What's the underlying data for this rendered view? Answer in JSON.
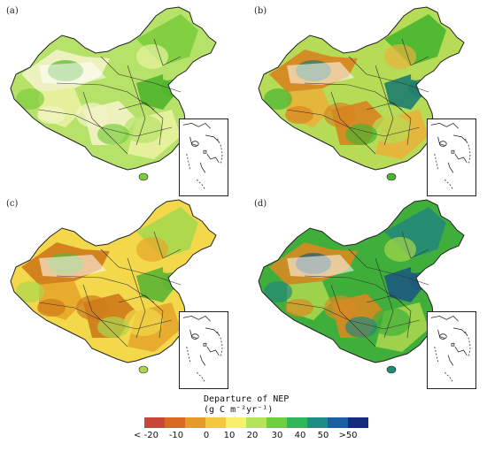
{
  "panels": [
    {
      "label": "(a)",
      "palette": [
        "#f3f3c8",
        "#e9f3a0",
        "#b7e26a",
        "#7ccd3e",
        "#4fb52e"
      ]
    },
    {
      "label": "(b)",
      "palette": [
        "#d9831f",
        "#e9b23a",
        "#b6dc57",
        "#47b530",
        "#1d7c6e"
      ]
    },
    {
      "label": "(c)",
      "palette": [
        "#cf7a1a",
        "#e5a72a",
        "#f2d84a",
        "#a9d84d",
        "#5bb534"
      ]
    },
    {
      "label": "(d)",
      "palette": [
        "#d88a22",
        "#a7d64c",
        "#3fae3a",
        "#23897a",
        "#1d5a7e"
      ]
    }
  ],
  "legend": {
    "title_line1": "Departure of NEP",
    "title_line2": "(g C m⁻²yr⁻¹)",
    "colors": [
      "#c8463a",
      "#d86a24",
      "#e59a2a",
      "#f2c83e",
      "#f6f06a",
      "#b6e35c",
      "#6fcf3e",
      "#2fb85a",
      "#1f8e86",
      "#1b5fa0",
      "#142c7a"
    ],
    "ticks": [
      "< -20",
      "-10",
      "0",
      "10",
      "20",
      "30",
      "40",
      "50",
      ">50"
    ]
  }
}
